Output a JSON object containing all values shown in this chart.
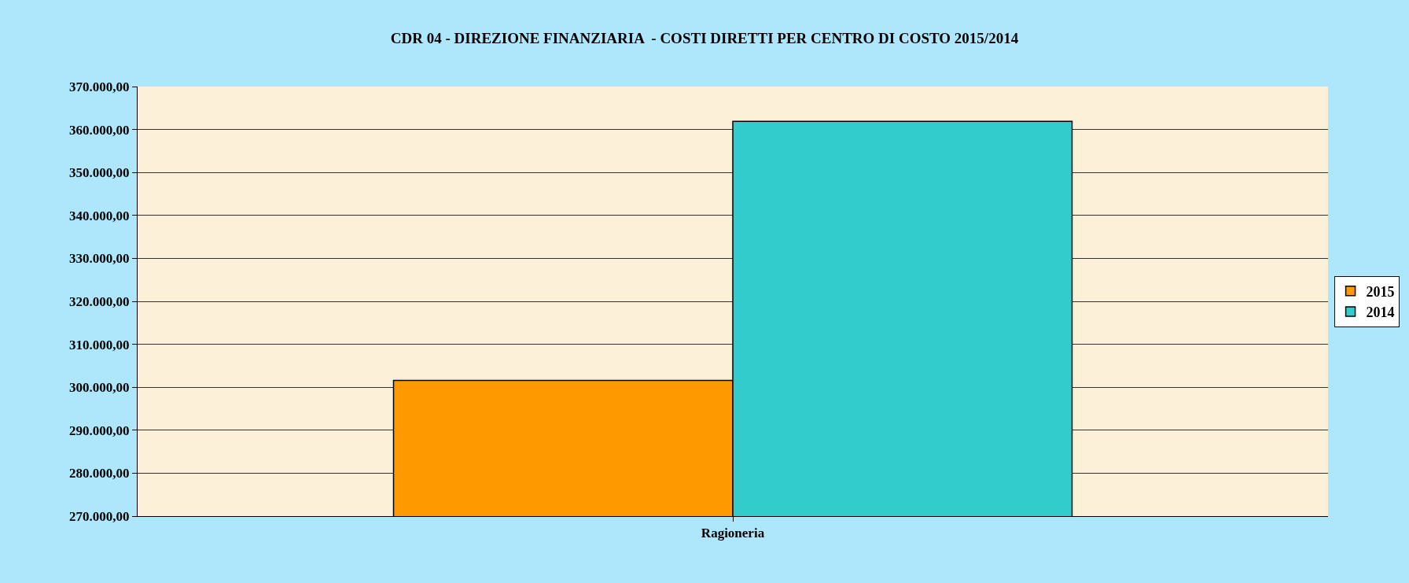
{
  "chart_data": {
    "type": "bar",
    "title": "CDR 04 - DIREZIONE FINANZIARIA  - COSTI DIRETTI PER CENTRO DI COSTO 2015/2014",
    "categories": [
      "Ragioneria"
    ],
    "series": [
      {
        "name": "2015",
        "color": "#ff9900",
        "values": [
          301600
        ]
      },
      {
        "name": "2014",
        "color": "#33cccc",
        "values": [
          361900
        ]
      }
    ],
    "ylim": [
      270000,
      370000
    ],
    "yticks": [
      {
        "value": 270000,
        "label": "270.000,00"
      },
      {
        "value": 280000,
        "label": "280.000,00"
      },
      {
        "value": 290000,
        "label": "290.000,00"
      },
      {
        "value": 300000,
        "label": "300.000,00"
      },
      {
        "value": 310000,
        "label": "310.000,00"
      },
      {
        "value": 320000,
        "label": "320.000,00"
      },
      {
        "value": 330000,
        "label": "330.000,00"
      },
      {
        "value": 340000,
        "label": "340.000,00"
      },
      {
        "value": 350000,
        "label": "350.000,00"
      },
      {
        "value": 360000,
        "label": "360.000,00"
      },
      {
        "value": 370000,
        "label": "370.000,00"
      }
    ],
    "grid": "y",
    "legend": "right"
  }
}
